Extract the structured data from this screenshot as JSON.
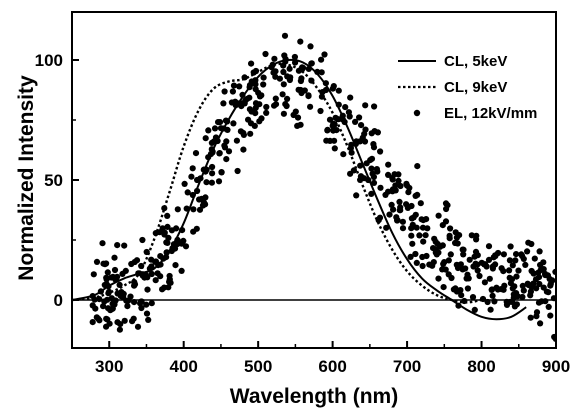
{
  "chart_data": {
    "type": "line",
    "title": "",
    "xlabel": "Wavelength (nm)",
    "ylabel": "Normalized Intensity",
    "xlim": [
      250,
      900
    ],
    "ylim": [
      -20,
      120
    ],
    "grid": false,
    "legend_position": "top-right",
    "xticks": [
      300,
      400,
      500,
      600,
      700,
      800,
      900
    ],
    "xtick_labels": [
      "300",
      "400",
      "500",
      "600",
      "700",
      "800",
      "900"
    ],
    "yticks": [
      0,
      50,
      100
    ],
    "ytick_labels": [
      "0",
      "50",
      "100"
    ],
    "series": [
      {
        "name": "CL, 5keV",
        "style": "solid",
        "x": [
          250,
          280,
          300,
          320,
          340,
          360,
          380,
          400,
          420,
          440,
          460,
          480,
          500,
          520,
          540,
          560,
          580,
          600,
          620,
          640,
          660,
          680,
          700,
          720,
          740,
          760,
          780,
          800,
          820,
          840,
          860
        ],
        "y": [
          0,
          2,
          6,
          9,
          11,
          13,
          20,
          32,
          48,
          63,
          75,
          85,
          93,
          98,
          100,
          99,
          94,
          85,
          72,
          57,
          42,
          28,
          17,
          9,
          4,
          0,
          -4,
          -7,
          -8,
          -7,
          -3
        ]
      },
      {
        "name": "CL, 9keV",
        "style": "dotted",
        "x": [
          250,
          280,
          300,
          320,
          340,
          360,
          380,
          400,
          420,
          440,
          460,
          480,
          500,
          520,
          540,
          560,
          580,
          600,
          620,
          640,
          660,
          680,
          700,
          720,
          740,
          760,
          780,
          800
        ],
        "y": [
          0,
          1,
          3,
          6,
          11,
          25,
          44,
          64,
          79,
          88,
          91,
          92,
          95,
          98,
          98,
          95,
          88,
          78,
          64,
          48,
          33,
          21,
          12,
          6,
          2,
          0,
          -1,
          0
        ]
      },
      {
        "name": "EL, 12kV/mm",
        "style": "markers",
        "model": {
          "x": [
            275,
            300,
            320,
            340,
            360,
            380,
            400,
            420,
            440,
            460,
            480,
            500,
            520,
            540,
            560,
            580,
            600,
            620,
            640,
            660,
            680,
            700,
            720,
            740,
            760,
            780,
            800,
            820,
            840,
            860,
            880,
            900
          ],
          "y": [
            5,
            4,
            3,
            6,
            13,
            22,
            35,
            48,
            61,
            72,
            79,
            84,
            89,
            91,
            91,
            88,
            80,
            70,
            62,
            52,
            43,
            36,
            28,
            22,
            18,
            15,
            13,
            11,
            10,
            9,
            7,
            6
          ]
        },
        "x_range": [
          275,
          900
        ],
        "point_count": 620,
        "scatter": 9
      }
    ]
  }
}
